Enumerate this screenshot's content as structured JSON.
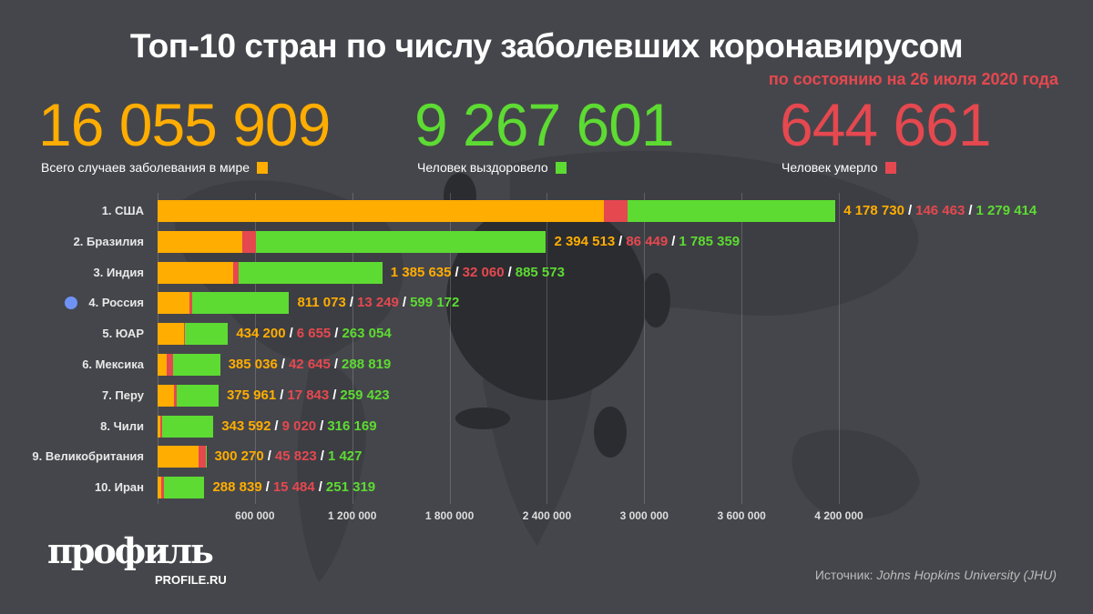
{
  "title": "Топ-10 стран по числу заболевших коронавирусом",
  "subtitle": "по состоянию на 26 июля 2020 года",
  "colors": {
    "cases": "#ffad00",
    "recovered": "#5ddb32",
    "deaths": "#e5484f",
    "russia_marker": "#6f93f5"
  },
  "totals": {
    "cases": {
      "value": "16 055 909",
      "label": "Всего случаев заболевания в мире"
    },
    "recovered": {
      "value": "9 267 601",
      "label": "Человек выздоровело"
    },
    "deaths": {
      "value": "644 661",
      "label": "Человек умерло"
    }
  },
  "chart_data": {
    "type": "bar",
    "orientation": "horizontal",
    "stacked": true,
    "title": "Топ-10 стран по числу заболевших коронавирусом",
    "categories": [
      "1. США",
      "2. Бразилия",
      "3. Индия",
      "4. Россия",
      "5. ЮАР",
      "6. Мексика",
      "7. Перу",
      "8. Чили",
      "9. Великобритания",
      "10. Иран"
    ],
    "cases": [
      4178730,
      2394513,
      1385635,
      811073,
      434200,
      385036,
      375961,
      343592,
      300270,
      288839
    ],
    "deaths": [
      146463,
      86449,
      32060,
      13249,
      6655,
      42645,
      17843,
      9020,
      45823,
      15484
    ],
    "recovered": [
      1279414,
      1785359,
      885573,
      599172,
      263054,
      288819,
      259423,
      316169,
      1427,
      251319
    ],
    "labels": [
      [
        "4 178 730",
        "146 463",
        "1 279 414"
      ],
      [
        "2 394 513",
        "86 449",
        "1 785 359"
      ],
      [
        "1 385 635",
        "32 060",
        "885 573"
      ],
      [
        "811 073",
        "13 249",
        "599 172"
      ],
      [
        "434 200",
        "6 655",
        "263 054"
      ],
      [
        "385 036",
        "42 645",
        "288 819"
      ],
      [
        "375 961",
        "17 843",
        "259 423"
      ],
      [
        "343 592",
        "9 020",
        "316 169"
      ],
      [
        "300 270",
        "45 823",
        "1 427"
      ],
      [
        "288 839",
        "15 484",
        "251 319"
      ]
    ],
    "series_order": [
      "active (cases − deaths − recovered)",
      "deaths",
      "recovered"
    ],
    "xlim": [
      0,
      4200000
    ],
    "xticks": [
      600000,
      1200000,
      1800000,
      2400000,
      3000000,
      3600000,
      4200000
    ],
    "xtick_labels": [
      "600 000",
      "1 200 000",
      "1 800 000",
      "2 400 000",
      "3 000 000",
      "3 600 000",
      "4 200 000"
    ],
    "grid": true
  },
  "source": {
    "prefix": "Источник:",
    "name": "Johns Hopkins University (JHU)"
  },
  "logo": {
    "text": "профиль",
    "sub": "PROFILE.RU"
  }
}
